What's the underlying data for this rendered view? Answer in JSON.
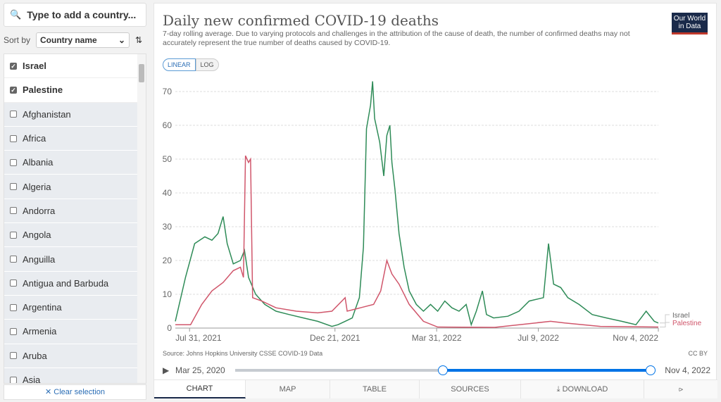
{
  "sidebar": {
    "search_placeholder": "Type to add a country...",
    "sort_label": "Sort by",
    "sort_value": "Country name",
    "items": [
      {
        "label": "Israel",
        "checked": true
      },
      {
        "label": "Palestine",
        "checked": true
      },
      {
        "label": "Afghanistan",
        "checked": false
      },
      {
        "label": "Africa",
        "checked": false
      },
      {
        "label": "Albania",
        "checked": false
      },
      {
        "label": "Algeria",
        "checked": false
      },
      {
        "label": "Andorra",
        "checked": false
      },
      {
        "label": "Angola",
        "checked": false
      },
      {
        "label": "Anguilla",
        "checked": false
      },
      {
        "label": "Antigua and Barbuda",
        "checked": false
      },
      {
        "label": "Argentina",
        "checked": false
      },
      {
        "label": "Armenia",
        "checked": false
      },
      {
        "label": "Aruba",
        "checked": false
      },
      {
        "label": "Asia",
        "checked": false
      }
    ],
    "clear_label": "Clear selection"
  },
  "header": {
    "title": "Daily new confirmed COVID-19 deaths",
    "subtitle": "7-day rolling average. Due to varying protocols and challenges in the attribution of the cause of death, the number of confirmed deaths may not accurately represent the true number of deaths caused by COVID-19.",
    "logo": "Our World in Data",
    "scale_linear": "LINEAR",
    "scale_log": "LOG"
  },
  "footer": {
    "source": "Source: Johns Hopkins University CSSE COVID-19 Data",
    "license": "CC BY",
    "timeline_start": "Mar 25, 2020",
    "timeline_end": "Nov 4, 2022",
    "timeline_selection_start_fraction": 0.5,
    "timeline_selection_end_fraction": 1.0
  },
  "tabs": [
    "CHART",
    "MAP",
    "TABLE",
    "SOURCES",
    "DOWNLOAD"
  ],
  "colors": {
    "israel": "#2e8b57",
    "palestine": "#d0566b",
    "accent": "#0073e6"
  },
  "chart_data": {
    "type": "line",
    "title": "Daily new confirmed COVID-19 deaths",
    "x_unit": "days since Jul 31, 2021",
    "xticks": [
      {
        "day": 0,
        "label": "Jul 31, 2021"
      },
      {
        "day": 143,
        "label": "Dec 21, 2021"
      },
      {
        "day": 243,
        "label": "Mar 31, 2022"
      },
      {
        "day": 343,
        "label": "Jul 9, 2022"
      },
      {
        "day": 461,
        "label": "Nov 4, 2022"
      }
    ],
    "yticks": [
      0,
      10,
      20,
      30,
      40,
      50,
      60,
      70
    ],
    "ylim": [
      0,
      75
    ],
    "xlim": [
      -14,
      461
    ],
    "grid": true,
    "legend": "right-inline",
    "series": [
      {
        "name": "Israel",
        "color": "#2e8b57",
        "points": [
          [
            -14,
            2
          ],
          [
            -4,
            15
          ],
          [
            5,
            25
          ],
          [
            15,
            27
          ],
          [
            22,
            26
          ],
          [
            28,
            28
          ],
          [
            33,
            33
          ],
          [
            37,
            25
          ],
          [
            43,
            19
          ],
          [
            50,
            20
          ],
          [
            54,
            23
          ],
          [
            58,
            15
          ],
          [
            65,
            10
          ],
          [
            74,
            7
          ],
          [
            85,
            5
          ],
          [
            98,
            4
          ],
          [
            112,
            3
          ],
          [
            126,
            2
          ],
          [
            140,
            0.5
          ],
          [
            146,
            1
          ],
          [
            153,
            2
          ],
          [
            160,
            3
          ],
          [
            167,
            9
          ],
          [
            171,
            24
          ],
          [
            174,
            59
          ],
          [
            178,
            66
          ],
          [
            180,
            73
          ],
          [
            182,
            62
          ],
          [
            187,
            55
          ],
          [
            191,
            45
          ],
          [
            194,
            57
          ],
          [
            197,
            60
          ],
          [
            199,
            49
          ],
          [
            202,
            41
          ],
          [
            206,
            28
          ],
          [
            211,
            18
          ],
          [
            216,
            11
          ],
          [
            223,
            7
          ],
          [
            230,
            5
          ],
          [
            237,
            7
          ],
          [
            244,
            5
          ],
          [
            251,
            8
          ],
          [
            258,
            6
          ],
          [
            265,
            5
          ],
          [
            272,
            7
          ],
          [
            277,
            1
          ],
          [
            282,
            5
          ],
          [
            288,
            11
          ],
          [
            292,
            4
          ],
          [
            299,
            3
          ],
          [
            313,
            3.5
          ],
          [
            324,
            5
          ],
          [
            334,
            8
          ],
          [
            348,
            9
          ],
          [
            353,
            25
          ],
          [
            358,
            13
          ],
          [
            365,
            12
          ],
          [
            372,
            9
          ],
          [
            383,
            7
          ],
          [
            396,
            4
          ],
          [
            410,
            3
          ],
          [
            425,
            2
          ],
          [
            439,
            1
          ],
          [
            449,
            5
          ],
          [
            457,
            2
          ],
          [
            461,
            1.5
          ]
        ]
      },
      {
        "name": "Palestine",
        "color": "#d0566b",
        "points": [
          [
            -14,
            1
          ],
          [
            1,
            1
          ],
          [
            12,
            7
          ],
          [
            22,
            11
          ],
          [
            33,
            13.5
          ],
          [
            43,
            17
          ],
          [
            50,
            18
          ],
          [
            53,
            15
          ],
          [
            55,
            51
          ],
          [
            58,
            49
          ],
          [
            60,
            50
          ],
          [
            62,
            9
          ],
          [
            71,
            8
          ],
          [
            85,
            6
          ],
          [
            105,
            5
          ],
          [
            126,
            4.5
          ],
          [
            140,
            5
          ],
          [
            153,
            9
          ],
          [
            155,
            5
          ],
          [
            168,
            6
          ],
          [
            181,
            7
          ],
          [
            188,
            11
          ],
          [
            194,
            20
          ],
          [
            199,
            16
          ],
          [
            206,
            13
          ],
          [
            216,
            7
          ],
          [
            230,
            2
          ],
          [
            244,
            0.3
          ],
          [
            300,
            0.2
          ],
          [
            355,
            2
          ],
          [
            369,
            1.5
          ],
          [
            404,
            0.5
          ],
          [
            461,
            0.3
          ]
        ]
      }
    ]
  }
}
